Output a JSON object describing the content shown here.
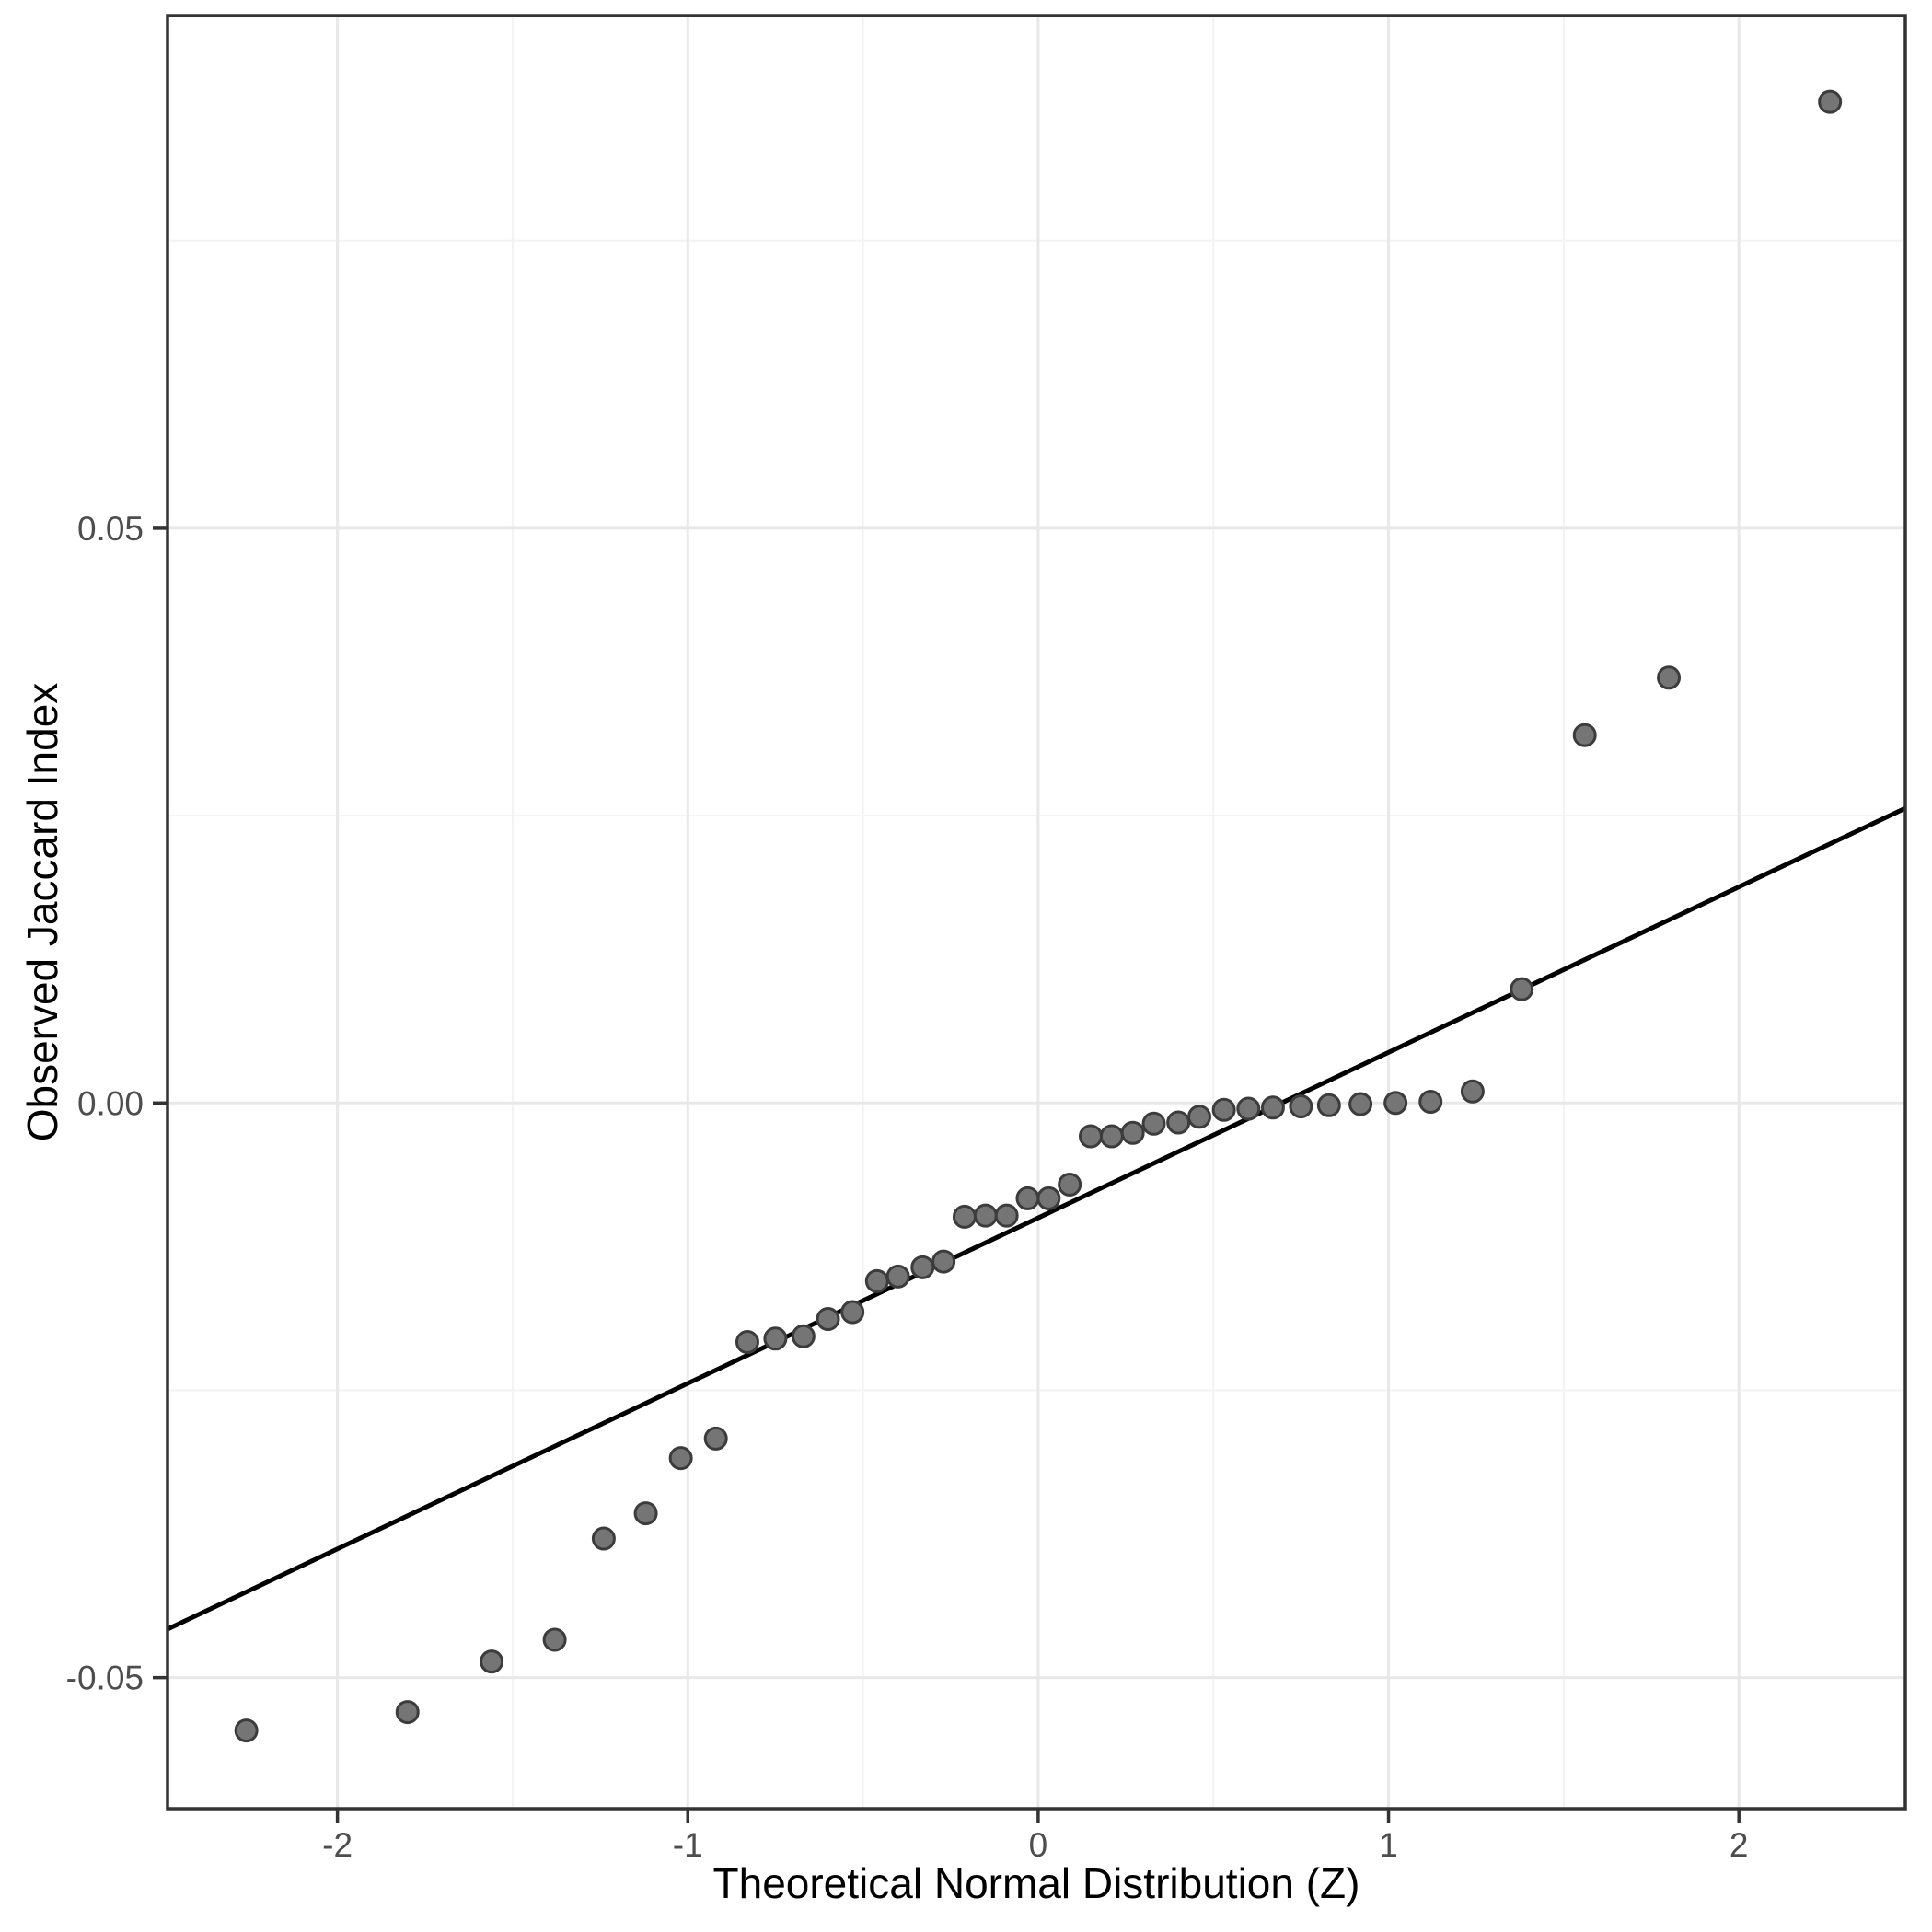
{
  "chart_data": {
    "type": "scatter",
    "title": "",
    "xlabel": "Theoretical Normal Distribution (Z)",
    "ylabel": "Observed Jaccard Index",
    "xlim": [
      -2.485,
      2.475
    ],
    "ylim": [
      -0.0614,
      0.0946
    ],
    "grid": "major+minor",
    "legend": "none",
    "x_ticks": [
      {
        "value": -2,
        "label": "-2"
      },
      {
        "value": -1,
        "label": "-1"
      },
      {
        "value": 0,
        "label": "0"
      },
      {
        "value": 1,
        "label": "1"
      },
      {
        "value": 2,
        "label": "2"
      }
    ],
    "x_minor_ticks": [
      -1.5,
      -0.5,
      0.5,
      1.5
    ],
    "y_ticks": [
      {
        "value": 0.05,
        "label": "0.05"
      },
      {
        "value": 0.0,
        "label": "0.00"
      },
      {
        "value": -0.05,
        "label": "-0.05"
      }
    ],
    "y_minor_ticks": [
      0.075,
      0.025,
      -0.025
    ],
    "reference_line": {
      "slope": 0.0144,
      "intercept": -0.01
    },
    "points": [
      [
        -2.26,
        -0.0546
      ],
      [
        -1.8,
        -0.053
      ],
      [
        -1.56,
        -0.0486
      ],
      [
        -1.38,
        -0.0467
      ],
      [
        -1.24,
        -0.0379
      ],
      [
        -1.12,
        -0.0357
      ],
      [
        -1.02,
        -0.0309
      ],
      [
        -0.92,
        -0.0292
      ],
      [
        -0.83,
        -0.0208
      ],
      [
        -0.75,
        -0.0205
      ],
      [
        -0.67,
        -0.0203
      ],
      [
        -0.6,
        -0.0188
      ],
      [
        -0.53,
        -0.0182
      ],
      [
        -0.46,
        -0.0155
      ],
      [
        -0.4,
        -0.0151
      ],
      [
        -0.33,
        -0.0143
      ],
      [
        -0.27,
        -0.0138
      ],
      [
        -0.21,
        -0.0099
      ],
      [
        -0.15,
        -0.0098
      ],
      [
        -0.09,
        -0.0098
      ],
      [
        -0.03,
        -0.0083
      ],
      [
        0.03,
        -0.0083
      ],
      [
        0.09,
        -0.0071
      ],
      [
        0.15,
        -0.0029
      ],
      [
        0.21,
        -0.0029
      ],
      [
        0.27,
        -0.0026
      ],
      [
        0.33,
        -0.0018
      ],
      [
        0.4,
        -0.0017
      ],
      [
        0.46,
        -0.0012
      ],
      [
        0.53,
        -0.0006
      ],
      [
        0.6,
        -0.0005
      ],
      [
        0.67,
        -0.0004
      ],
      [
        0.75,
        -0.0003
      ],
      [
        0.83,
        -0.0002
      ],
      [
        0.92,
        -0.0001
      ],
      [
        1.02,
        0.0
      ],
      [
        1.12,
        0.0001
      ],
      [
        1.24,
        0.001
      ],
      [
        1.38,
        0.0099
      ],
      [
        1.56,
        0.032
      ],
      [
        1.8,
        0.037
      ],
      [
        2.26,
        0.0871
      ]
    ],
    "colors": {
      "background": "#ffffff",
      "panel_background": "#ffffff",
      "grid_major": "#e8e8e8",
      "grid_minor": "#f3f3f3",
      "panel_border": "#333333",
      "tick": "#333333",
      "tick_label": "#4d4d4d",
      "axis_title": "#000000",
      "point_fill": "#757575",
      "point_stroke": "#3c3c3c",
      "line": "#000000"
    }
  }
}
